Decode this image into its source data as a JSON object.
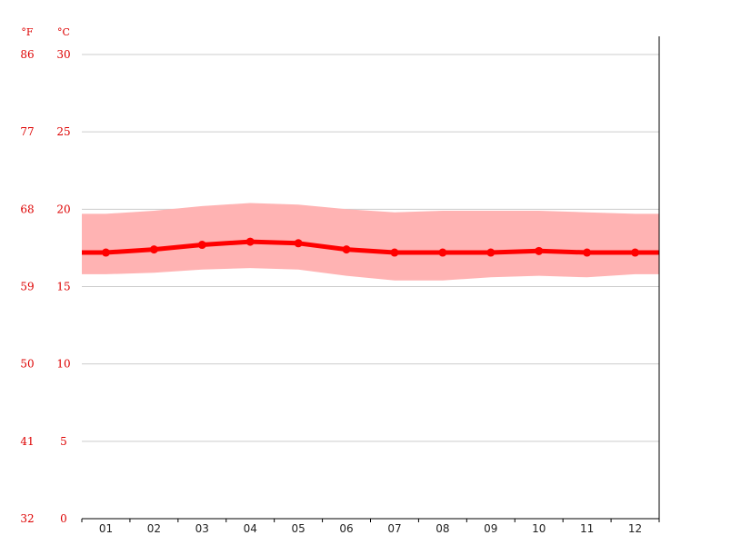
{
  "chart_data": {
    "type": "line",
    "title": "",
    "xlabel": "",
    "ylabel": "",
    "units": {
      "fahrenheit": "°F",
      "celsius": "°C"
    },
    "categories": [
      "01",
      "02",
      "03",
      "04",
      "05",
      "06",
      "07",
      "08",
      "09",
      "10",
      "11",
      "12"
    ],
    "ylim": [
      0,
      30
    ],
    "celsius_ticks": [
      {
        "value": 0,
        "label": "0"
      },
      {
        "value": 5,
        "label": "5"
      },
      {
        "value": 10,
        "label": "10"
      },
      {
        "value": 15,
        "label": "15"
      },
      {
        "value": 20,
        "label": "20"
      },
      {
        "value": 25,
        "label": "25"
      },
      {
        "value": 30,
        "label": "30"
      }
    ],
    "fahrenheit_ticks": [
      {
        "value": 0,
        "label": "32"
      },
      {
        "value": 5,
        "label": "41"
      },
      {
        "value": 10,
        "label": "50"
      },
      {
        "value": 15,
        "label": "59"
      },
      {
        "value": 20,
        "label": "68"
      },
      {
        "value": 25,
        "label": "77"
      },
      {
        "value": 30,
        "label": "86"
      }
    ],
    "series": [
      {
        "type": "line",
        "values": [
          17.2,
          17.4,
          17.7,
          17.9,
          17.8,
          17.4,
          17.2,
          17.2,
          17.2,
          17.3,
          17.2,
          17.2
        ],
        "edge_values": [
          17.2,
          17.2
        ]
      },
      {
        "type": "band",
        "upper": [
          19.7,
          19.9,
          20.2,
          20.4,
          20.3,
          20.0,
          19.8,
          19.9,
          19.9,
          19.9,
          19.8,
          19.7
        ],
        "lower": [
          15.8,
          15.9,
          16.1,
          16.2,
          16.1,
          15.7,
          15.4,
          15.4,
          15.6,
          15.7,
          15.6,
          15.8
        ],
        "edge_upper": [
          19.7,
          19.7
        ],
        "edge_lower": [
          15.8,
          15.8
        ]
      }
    ],
    "grid": true,
    "colors": {
      "line": "#ff0000",
      "band": "#ffb3b3",
      "axis_text": "#dd0000",
      "grid": "#cccccc",
      "axis": "#000000"
    }
  }
}
